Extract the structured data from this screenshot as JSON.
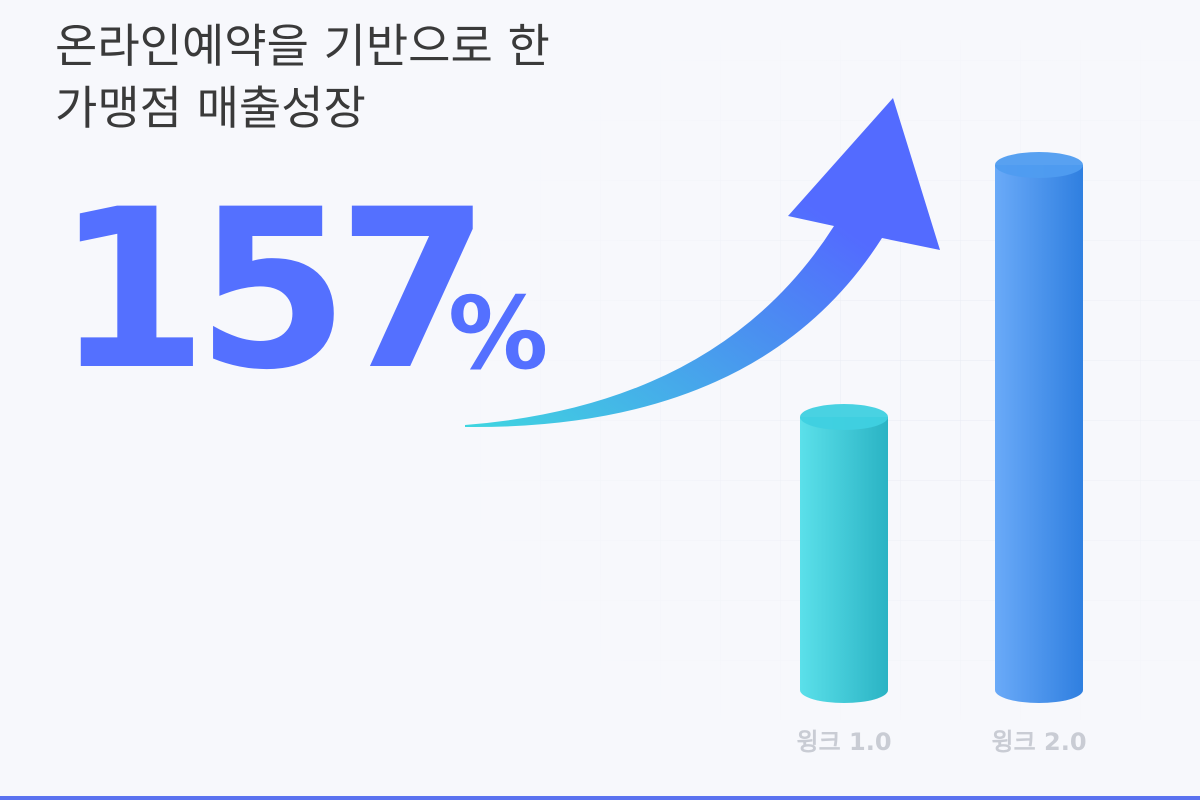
{
  "chart_data": {
    "type": "bar",
    "title_lines": [
      "온라인예약을 기반으로 한",
      "가맹점 매출성장"
    ],
    "highlight": "157",
    "highlight_unit": "%",
    "categories": [
      "윙크 1.0",
      "윙크 2.0"
    ],
    "values": [
      52,
      100
    ],
    "colors": [
      "#3fd0e0",
      "#4f9cf0"
    ],
    "ylim": [
      0,
      100
    ]
  }
}
